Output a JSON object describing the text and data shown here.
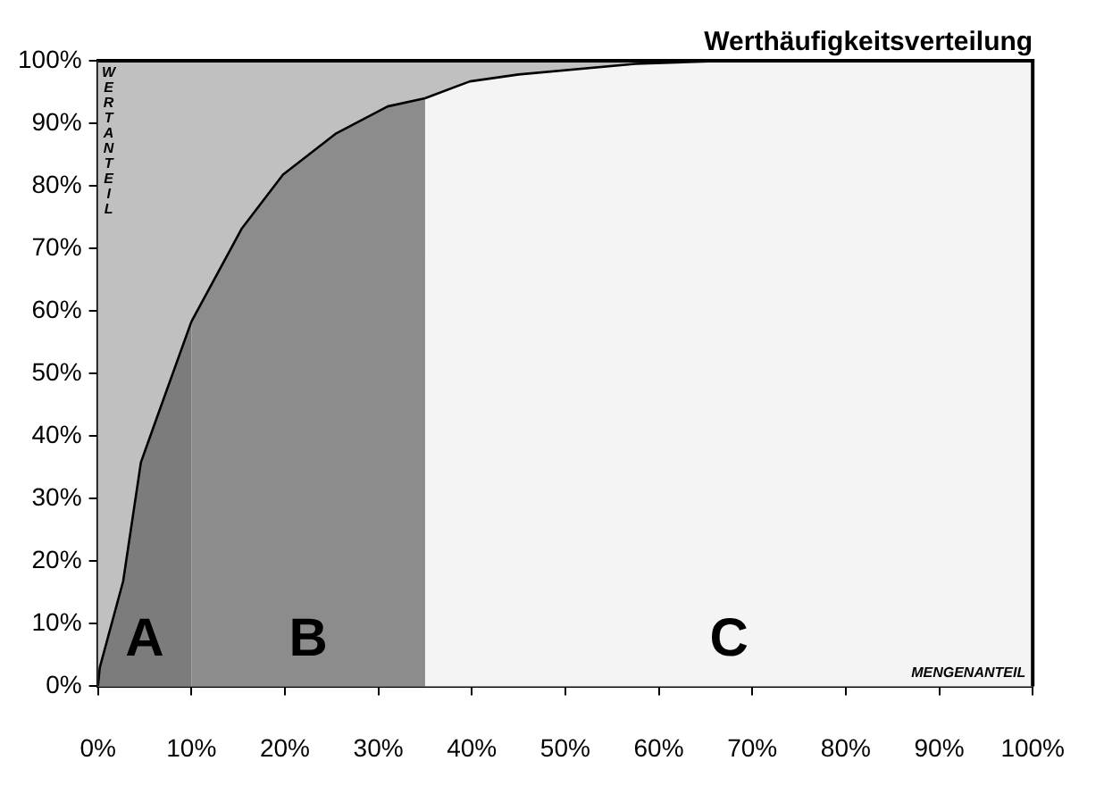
{
  "chart_data": {
    "type": "area",
    "title": "Werthäufigkeitsverteilung",
    "xlabel": "MENGENANTEIL",
    "ylabel": "WERTANTEIL",
    "series": [
      {
        "name": "A",
        "color": "#7c7c7c",
        "x": [
          0,
          0.2,
          2.7,
          4.6,
          6.2,
          10
        ],
        "values": [
          0,
          3,
          16.8,
          35.8,
          42.5,
          58.3
        ]
      },
      {
        "name": "B",
        "color": "#8c8c8c",
        "x": [
          10,
          15.4,
          19.8,
          25.4,
          31,
          35
        ],
        "values": [
          58.3,
          73.2,
          81.8,
          88.3,
          92.7,
          94
        ]
      },
      {
        "name": "C",
        "color": "#f4f4f4",
        "x": [
          35,
          39.8,
          45,
          57.5,
          67.5,
          100
        ],
        "values": [
          94,
          96.7,
          97.8,
          99.5,
          100,
          100
        ]
      }
    ],
    "xlim": [
      0,
      100
    ],
    "ylim": [
      0,
      100
    ],
    "xticks": [
      {
        "value": 0,
        "label": "0%"
      },
      {
        "value": 10,
        "label": "10%"
      },
      {
        "value": 20,
        "label": "20%"
      },
      {
        "value": 30,
        "label": "30%"
      },
      {
        "value": 40,
        "label": "40%"
      },
      {
        "value": 50,
        "label": "50%"
      },
      {
        "value": 60,
        "label": "60%"
      },
      {
        "value": 70,
        "label": "70%"
      },
      {
        "value": 80,
        "label": "80%"
      },
      {
        "value": 90,
        "label": "90%"
      },
      {
        "value": 100,
        "label": "100%"
      }
    ],
    "yticks": [
      {
        "value": 0,
        "label": "0%"
      },
      {
        "value": 10,
        "label": "10%"
      },
      {
        "value": 20,
        "label": "20%"
      },
      {
        "value": 30,
        "label": "30%"
      },
      {
        "value": 40,
        "label": "40%"
      },
      {
        "value": 50,
        "label": "50%"
      },
      {
        "value": 60,
        "label": "60%"
      },
      {
        "value": 70,
        "label": "70%"
      },
      {
        "value": 80,
        "label": "80%"
      },
      {
        "value": 90,
        "label": "90%"
      },
      {
        "value": 100,
        "label": "100%"
      }
    ],
    "grid": false,
    "legend": false,
    "marker": "none",
    "line_style": "solid"
  }
}
